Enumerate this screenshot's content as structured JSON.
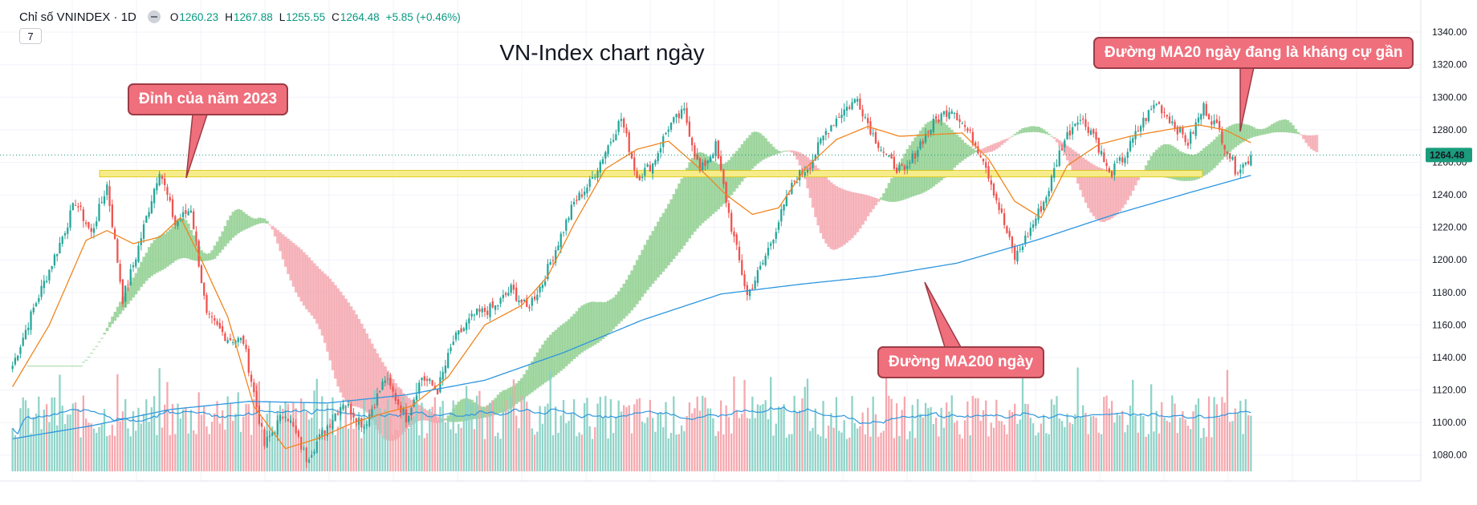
{
  "header": {
    "symbol": "Chỉ số VNINDEX · 1D",
    "ohlc": {
      "open_label": "O",
      "open": "1260.23",
      "high_label": "H",
      "high": "1267.88",
      "low_label": "L",
      "low": "1255.55",
      "close_label": "C",
      "close": "1264.48",
      "change": "+5.85 (+0.46%)"
    },
    "interval_label": "7"
  },
  "title": "VN-Index chart ngày",
  "annotations": {
    "peak": "Đỉnh của năm 2023",
    "ma20": "Đường MA20 ngày đang là kháng cự gần",
    "ma200": "Đường MA200 ngày"
  },
  "price_label": "1264.48",
  "colors": {
    "up": "#26a69a",
    "down": "#ef5350",
    "ma20": "#f0851f",
    "ma200": "#2d96e0",
    "cloud_bull": "#7fc77f",
    "cloud_bear": "#f29aa2",
    "resistance_band": "#f7ec8a",
    "callout_bg": "#ef6f7c",
    "price_label_bg": "#1a9c7c"
  },
  "chart_data": {
    "type": "candlestick",
    "timeframe": "1D",
    "yaxis": {
      "ticks": [
        1080,
        1100,
        1120,
        1140,
        1160,
        1180,
        1200,
        1220,
        1240,
        1260,
        1280,
        1300,
        1320,
        1340
      ],
      "ylim": [
        1070,
        1345
      ]
    },
    "last_price": 1264.48,
    "resistance_zone": [
      1251,
      1255
    ],
    "waypoints_close": [
      [
        0,
        1135
      ],
      [
        8,
        1170
      ],
      [
        18,
        1210
      ],
      [
        24,
        1236
      ],
      [
        30,
        1216
      ],
      [
        36,
        1246
      ],
      [
        42,
        1176
      ],
      [
        47,
        1202
      ],
      [
        56,
        1256
      ],
      [
        62,
        1222
      ],
      [
        68,
        1232
      ],
      [
        74,
        1165
      ],
      [
        82,
        1152
      ],
      [
        88,
        1150
      ],
      [
        96,
        1086
      ],
      [
        104,
        1107
      ],
      [
        112,
        1078
      ],
      [
        118,
        1093
      ],
      [
        126,
        1113
      ],
      [
        134,
        1098
      ],
      [
        142,
        1127
      ],
      [
        150,
        1103
      ],
      [
        156,
        1128
      ],
      [
        162,
        1120
      ],
      [
        168,
        1150
      ],
      [
        176,
        1166
      ],
      [
        184,
        1171
      ],
      [
        190,
        1182
      ],
      [
        196,
        1170
      ],
      [
        202,
        1186
      ],
      [
        208,
        1211
      ],
      [
        214,
        1235
      ],
      [
        220,
        1247
      ],
      [
        226,
        1267
      ],
      [
        232,
        1287
      ],
      [
        238,
        1251
      ],
      [
        244,
        1259
      ],
      [
        250,
        1282
      ],
      [
        256,
        1291
      ],
      [
        262,
        1254
      ],
      [
        268,
        1270
      ],
      [
        274,
        1220
      ],
      [
        280,
        1178
      ],
      [
        286,
        1198
      ],
      [
        292,
        1224
      ],
      [
        298,
        1249
      ],
      [
        304,
        1259
      ],
      [
        310,
        1279
      ],
      [
        316,
        1291
      ],
      [
        322,
        1299
      ],
      [
        328,
        1277
      ],
      [
        334,
        1261
      ],
      [
        340,
        1253
      ],
      [
        346,
        1272
      ],
      [
        352,
        1286
      ],
      [
        358,
        1294
      ],
      [
        364,
        1279
      ],
      [
        370,
        1263
      ],
      [
        376,
        1232
      ],
      [
        382,
        1201
      ],
      [
        388,
        1219
      ],
      [
        394,
        1239
      ],
      [
        400,
        1271
      ],
      [
        406,
        1288
      ],
      [
        412,
        1278
      ],
      [
        418,
        1252
      ],
      [
        424,
        1264
      ],
      [
        430,
        1283
      ],
      [
        436,
        1297
      ],
      [
        442,
        1285
      ],
      [
        448,
        1272
      ],
      [
        454,
        1294
      ],
      [
        460,
        1279
      ],
      [
        466,
        1256
      ],
      [
        470,
        1259
      ],
      [
        472,
        1264.48
      ]
    ],
    "ma20_waypoints": [
      [
        0,
        1122
      ],
      [
        14,
        1160
      ],
      [
        28,
        1212
      ],
      [
        36,
        1218
      ],
      [
        46,
        1210
      ],
      [
        56,
        1214
      ],
      [
        64,
        1226
      ],
      [
        72,
        1200
      ],
      [
        82,
        1165
      ],
      [
        92,
        1110
      ],
      [
        104,
        1084
      ],
      [
        116,
        1090
      ],
      [
        130,
        1100
      ],
      [
        142,
        1106
      ],
      [
        152,
        1110
      ],
      [
        166,
        1128
      ],
      [
        180,
        1160
      ],
      [
        194,
        1172
      ],
      [
        204,
        1190
      ],
      [
        214,
        1222
      ],
      [
        226,
        1256
      ],
      [
        238,
        1268
      ],
      [
        250,
        1273
      ],
      [
        262,
        1256
      ],
      [
        272,
        1240
      ],
      [
        282,
        1228
      ],
      [
        292,
        1232
      ],
      [
        302,
        1256
      ],
      [
        314,
        1274
      ],
      [
        326,
        1282
      ],
      [
        338,
        1276
      ],
      [
        350,
        1277
      ],
      [
        362,
        1278
      ],
      [
        372,
        1262
      ],
      [
        382,
        1236
      ],
      [
        392,
        1226
      ],
      [
        402,
        1258
      ],
      [
        414,
        1271
      ],
      [
        426,
        1276
      ],
      [
        440,
        1280
      ],
      [
        452,
        1283
      ],
      [
        462,
        1280
      ],
      [
        472,
        1272
      ]
    ],
    "ma200_waypoints": [
      [
        0,
        1090
      ],
      [
        30,
        1098
      ],
      [
        60,
        1108
      ],
      [
        90,
        1113
      ],
      [
        120,
        1112
      ],
      [
        150,
        1117
      ],
      [
        180,
        1126
      ],
      [
        210,
        1143
      ],
      [
        240,
        1163
      ],
      [
        270,
        1179
      ],
      [
        300,
        1185
      ],
      [
        330,
        1190
      ],
      [
        360,
        1198
      ],
      [
        390,
        1212
      ],
      [
        420,
        1228
      ],
      [
        450,
        1242
      ],
      [
        472,
        1252
      ]
    ],
    "volume_scale_ticks_hidden": true
  }
}
